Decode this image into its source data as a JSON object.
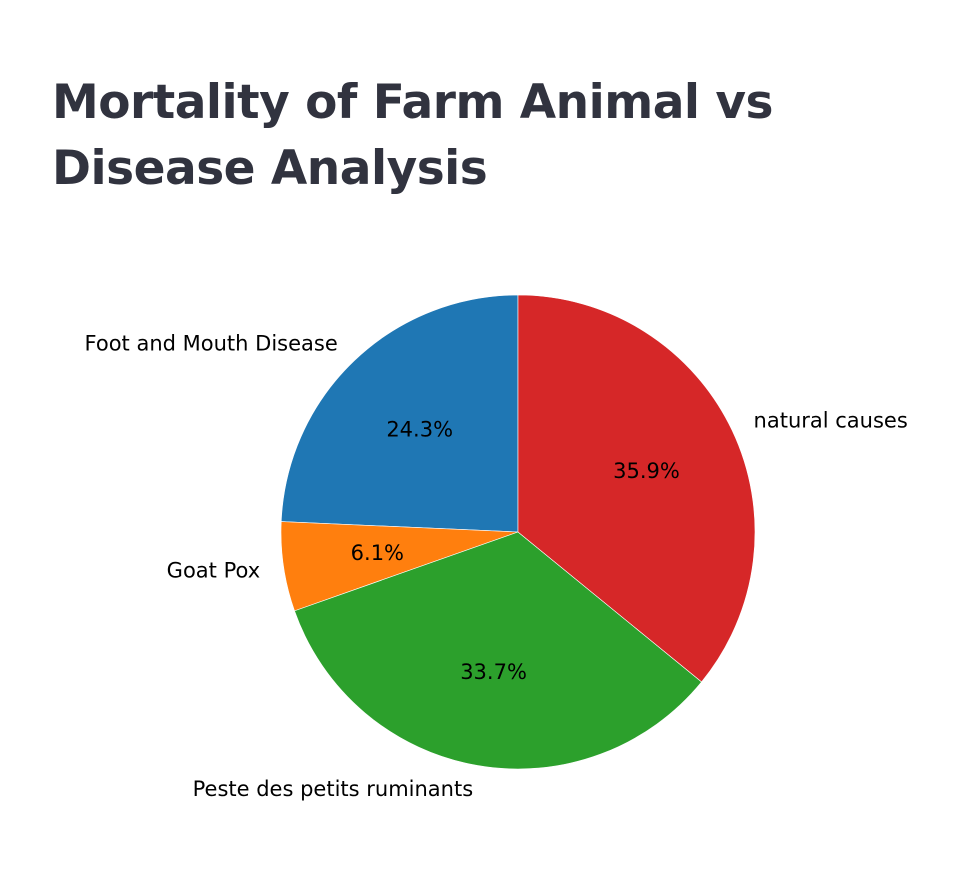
{
  "page": {
    "title": "Mortality of Farm Animal vs Disease Analysis"
  },
  "chart_data": {
    "type": "pie",
    "title": "",
    "labels": [
      "Foot and Mouth Disease",
      "Goat Pox",
      "Peste des petits ruminants",
      "natural causes"
    ],
    "values": [
      24.3,
      6.1,
      33.7,
      35.9
    ],
    "value_labels": [
      "24.3%",
      "6.1%",
      "33.7%",
      "35.9%"
    ],
    "colors": [
      "#1f77b4",
      "#ff7f0e",
      "#2ca02c",
      "#d62728"
    ],
    "start_angle_deg": 90,
    "direction": "counterclockwise",
    "legend": "none"
  }
}
